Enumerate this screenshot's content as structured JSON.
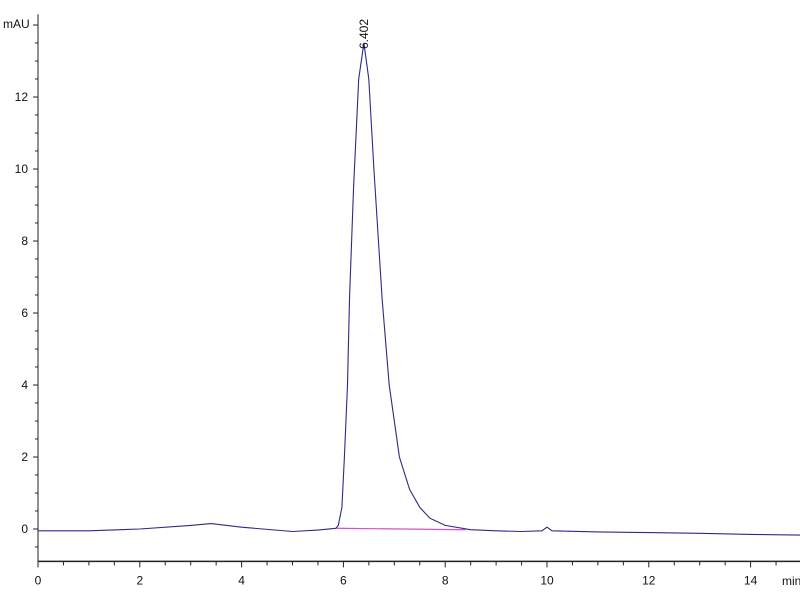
{
  "chart_data": {
    "type": "line",
    "title": "",
    "xlabel": "min",
    "ylabel": "mAU",
    "xlim": [
      0,
      15
    ],
    "ylim": [
      -0.9,
      14.3
    ],
    "x_ticks": [
      0,
      2,
      4,
      6,
      8,
      10,
      12,
      14
    ],
    "y_ticks": [
      0,
      2,
      4,
      6,
      8,
      10,
      12
    ],
    "grid": false,
    "colors": {
      "trace": "#2b2b86",
      "baseline": "#d34fd3",
      "axis": "#222222"
    },
    "series": [
      {
        "x": [
          0,
          1,
          2,
          3,
          3.4,
          4,
          5,
          5.5,
          5.85,
          5.9,
          5.97,
          6.02,
          6.08,
          6.12,
          6.2,
          6.3,
          6.402,
          6.5,
          6.6,
          6.76,
          6.9,
          7.1,
          7.3,
          7.5,
          7.7,
          8.0,
          8.5,
          9,
          9.5,
          9.9,
          10.0,
          10.1,
          11,
          12,
          13,
          14,
          15
        ],
        "y": [
          -0.05,
          -0.05,
          0.0,
          0.1,
          0.15,
          0.05,
          -0.07,
          -0.03,
          0.02,
          0.1,
          0.6,
          2,
          4,
          6.4,
          9.5,
          12.5,
          13.5,
          12.5,
          10,
          6.4,
          4,
          2,
          1.1,
          0.6,
          0.3,
          0.1,
          -0.02,
          -0.05,
          -0.07,
          -0.05,
          0.05,
          -0.05,
          -0.08,
          -0.1,
          -0.12,
          -0.15,
          -0.17
        ]
      }
    ],
    "baseline_segment": {
      "x": [
        5.85,
        8.4
      ],
      "y": [
        0.02,
        -0.02
      ]
    },
    "annotations": [
      {
        "text": "6.402",
        "x": 6.402,
        "y": 13.5
      }
    ]
  }
}
